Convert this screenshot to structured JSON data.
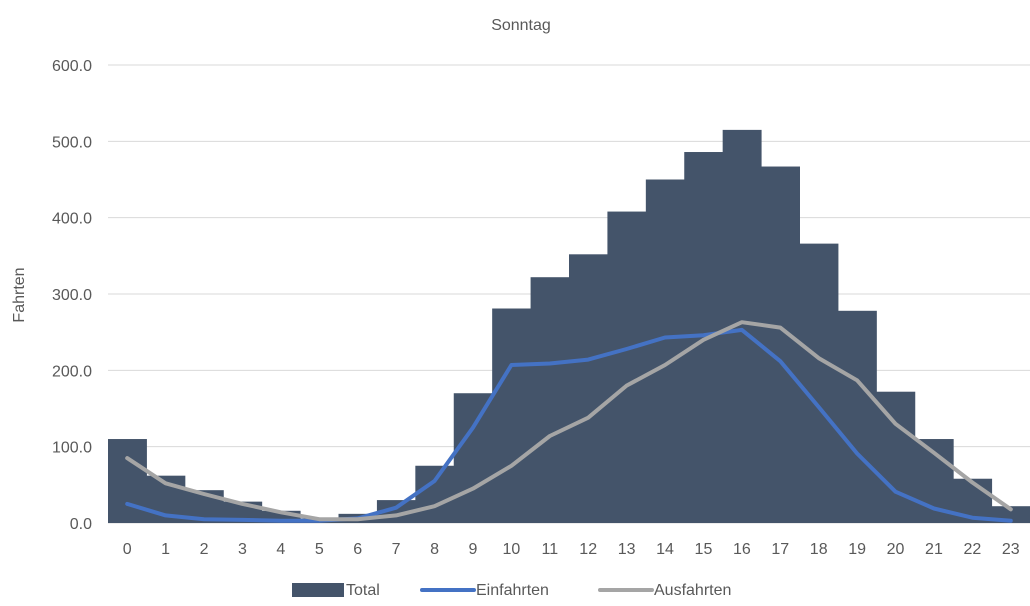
{
  "chart_data": {
    "type": "bar",
    "title": "Sonntag",
    "xlabel": "",
    "ylabel": "Fahrten",
    "ylim": [
      0,
      600
    ],
    "yticks": [
      "0.0",
      "100.0",
      "200.0",
      "300.0",
      "400.0",
      "500.0",
      "600.0"
    ],
    "grid": true,
    "legend_position": "bottom",
    "categories": [
      "0",
      "1",
      "2",
      "3",
      "4",
      "5",
      "6",
      "7",
      "8",
      "9",
      "10",
      "11",
      "12",
      "13",
      "14",
      "15",
      "16",
      "17",
      "18",
      "19",
      "20",
      "21",
      "22",
      "23"
    ],
    "series": [
      {
        "name": "Total",
        "kind": "bar",
        "color": "#44546a",
        "values": [
          110,
          62,
          43,
          28,
          16,
          6,
          12,
          30,
          75,
          170,
          281,
          322,
          352,
          408,
          450,
          486,
          515,
          467,
          366,
          278,
          172,
          110,
          58,
          22
        ]
      },
      {
        "name": "Einfahrten",
        "kind": "line",
        "color": "#4472c4",
        "values": [
          25,
          10,
          5,
          4,
          3,
          3,
          6,
          20,
          55,
          125,
          207,
          209,
          214,
          228,
          243,
          246,
          253,
          212,
          152,
          91,
          41,
          19,
          7,
          3
        ]
      },
      {
        "name": "Ausfahrten",
        "kind": "line",
        "color": "#a5a5a5",
        "values": [
          85,
          52,
          38,
          25,
          14,
          5,
          5,
          10,
          22,
          45,
          75,
          114,
          138,
          180,
          207,
          240,
          263,
          256,
          216,
          187,
          130,
          92,
          53,
          18
        ]
      }
    ]
  }
}
